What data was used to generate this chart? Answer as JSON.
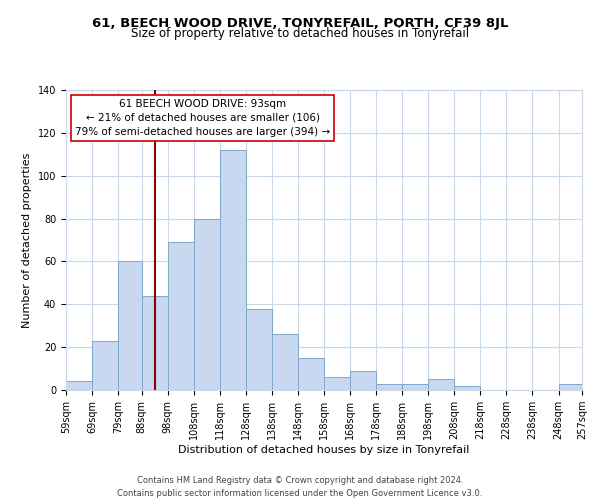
{
  "title": "61, BEECH WOOD DRIVE, TONYREFAIL, PORTH, CF39 8JL",
  "subtitle": "Size of property relative to detached houses in Tonyrefail",
  "xlabel": "Distribution of detached houses by size in Tonyrefail",
  "ylabel": "Number of detached properties",
  "footer_line1": "Contains HM Land Registry data © Crown copyright and database right 2024.",
  "footer_line2": "Contains public sector information licensed under the Open Government Licence v3.0.",
  "bin_edges": [
    59,
    69,
    79,
    88,
    98,
    108,
    118,
    128,
    138,
    148,
    158,
    168,
    178,
    188,
    198,
    208,
    218,
    228,
    238,
    248,
    257
  ],
  "bin_labels": [
    "59sqm",
    "69sqm",
    "79sqm",
    "88sqm",
    "98sqm",
    "108sqm",
    "118sqm",
    "128sqm",
    "138sqm",
    "148sqm",
    "158sqm",
    "168sqm",
    "178sqm",
    "188sqm",
    "198sqm",
    "208sqm",
    "218sqm",
    "228sqm",
    "238sqm",
    "248sqm",
    "257sqm"
  ],
  "counts": [
    4,
    23,
    60,
    44,
    69,
    80,
    112,
    38,
    26,
    15,
    6,
    9,
    3,
    3,
    5,
    2,
    0,
    0,
    0,
    3
  ],
  "bar_color": "#c8d8f0",
  "bar_edge_color": "#7fa8cc",
  "vline_x": 93,
  "vline_color": "#8b0000",
  "annotation_text_line1": "61 BEECH WOOD DRIVE: 93sqm",
  "annotation_text_line2": "← 21% of detached houses are smaller (106)",
  "annotation_text_line3": "79% of semi-detached houses are larger (394) →",
  "ylim": [
    0,
    140
  ],
  "yticks": [
    0,
    20,
    40,
    60,
    80,
    100,
    120,
    140
  ],
  "background_color": "#ffffff",
  "grid_color": "#c8d8e8",
  "title_fontsize": 9.5,
  "subtitle_fontsize": 8.5,
  "axis_label_fontsize": 8,
  "tick_fontsize": 7,
  "annotation_fontsize": 7.5,
  "footer_fontsize": 6
}
